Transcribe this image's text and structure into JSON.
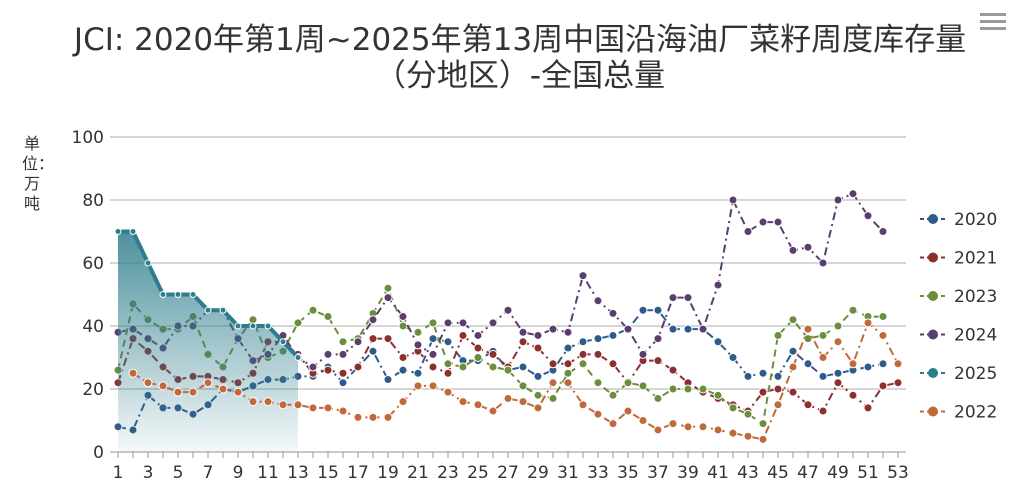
{
  "chart_data": {
    "type": "line",
    "title": "JCI: 2020年第1周~2025年第13周中国沿海油厂菜籽周度库存量（分地区）-全国总量",
    "ylabel": "单位：万吨",
    "xlabel": "",
    "ylim": [
      0,
      100
    ],
    "yticks": [
      0,
      20,
      40,
      60,
      80,
      100
    ],
    "xlim": [
      1,
      53
    ],
    "xticks": [
      1,
      3,
      5,
      7,
      9,
      11,
      13,
      15,
      17,
      19,
      21,
      23,
      25,
      27,
      29,
      31,
      33,
      35,
      37,
      39,
      41,
      43,
      45,
      47,
      49,
      51,
      53
    ],
    "grid": true,
    "legend_position": "right",
    "series": [
      {
        "name": "2020",
        "color": "#2f5b8c",
        "style": "dashdot",
        "start": 1,
        "values": [
          8,
          7,
          18,
          14,
          14,
          12,
          15,
          20,
          19,
          21,
          23,
          23,
          24,
          24,
          27,
          22,
          27,
          32,
          23,
          26,
          25,
          36,
          35,
          29,
          29,
          32,
          26,
          27,
          24,
          26,
          33,
          35,
          36,
          37,
          39,
          45,
          45,
          39,
          39,
          39,
          35,
          30,
          24,
          25,
          24,
          32,
          28,
          24,
          25,
          26,
          27,
          28
        ]
      },
      {
        "name": "2021",
        "color": "#8b2f2f",
        "style": "dashdot",
        "start": 1,
        "values": [
          22,
          36,
          32,
          27,
          23,
          24,
          24,
          23,
          22,
          25,
          35,
          35,
          31,
          25,
          26,
          25,
          27,
          36,
          36,
          30,
          32,
          27,
          25,
          37,
          33,
          31,
          27,
          35,
          33,
          28,
          28,
          31,
          31,
          28,
          22,
          29,
          29,
          26,
          22,
          19,
          17,
          15,
          13,
          19,
          20,
          19,
          15,
          13,
          22,
          18,
          14,
          21,
          22
        ]
      },
      {
        "name": "2023",
        "color": "#6b8e3e",
        "style": "dash",
        "start": 1,
        "values": [
          26,
          47,
          42,
          39,
          39,
          43,
          31,
          27,
          36,
          42,
          30,
          32,
          41,
          45,
          43,
          35,
          36,
          44,
          52,
          40,
          38,
          41,
          28,
          27,
          30,
          27,
          26,
          21,
          18,
          17,
          25,
          28,
          22,
          18,
          22,
          21,
          17,
          20,
          20,
          20,
          18,
          14,
          12,
          9,
          37,
          42,
          36,
          37,
          40,
          45,
          43,
          43
        ]
      },
      {
        "name": "2024",
        "color": "#5a3e6e",
        "style": "dashdot",
        "start": 1,
        "values": [
          38,
          39,
          36,
          33,
          40,
          40,
          45,
          45,
          36,
          29,
          31,
          37,
          30,
          27,
          31,
          31,
          35,
          42,
          49,
          43,
          34,
          31,
          41,
          41,
          37,
          41,
          45,
          38,
          37,
          39,
          38,
          56,
          48,
          44,
          39,
          31,
          36,
          49,
          49,
          39,
          53,
          80,
          70,
          73,
          73,
          64,
          65,
          60,
          80,
          82,
          75,
          70
        ]
      },
      {
        "name": "2025",
        "color": "#2e7d8c",
        "style": "solid-area",
        "start": 1,
        "values": [
          70,
          70,
          60,
          50,
          50,
          50,
          45,
          45,
          40,
          40,
          40,
          35,
          30
        ]
      },
      {
        "name": "2022",
        "color": "#c0693a",
        "style": "dashdot",
        "start": 2,
        "values": [
          25,
          22,
          21,
          19,
          19,
          22,
          20,
          19,
          16,
          16,
          15,
          15,
          14,
          14,
          13,
          11,
          11,
          11,
          16,
          21,
          21,
          19,
          16,
          15,
          13,
          17,
          16,
          14,
          22,
          22,
          15,
          12,
          9,
          13,
          10,
          7,
          9,
          8,
          8,
          7,
          6,
          5,
          4,
          15,
          27,
          39,
          30,
          35,
          28,
          41,
          37,
          28
        ]
      }
    ]
  }
}
